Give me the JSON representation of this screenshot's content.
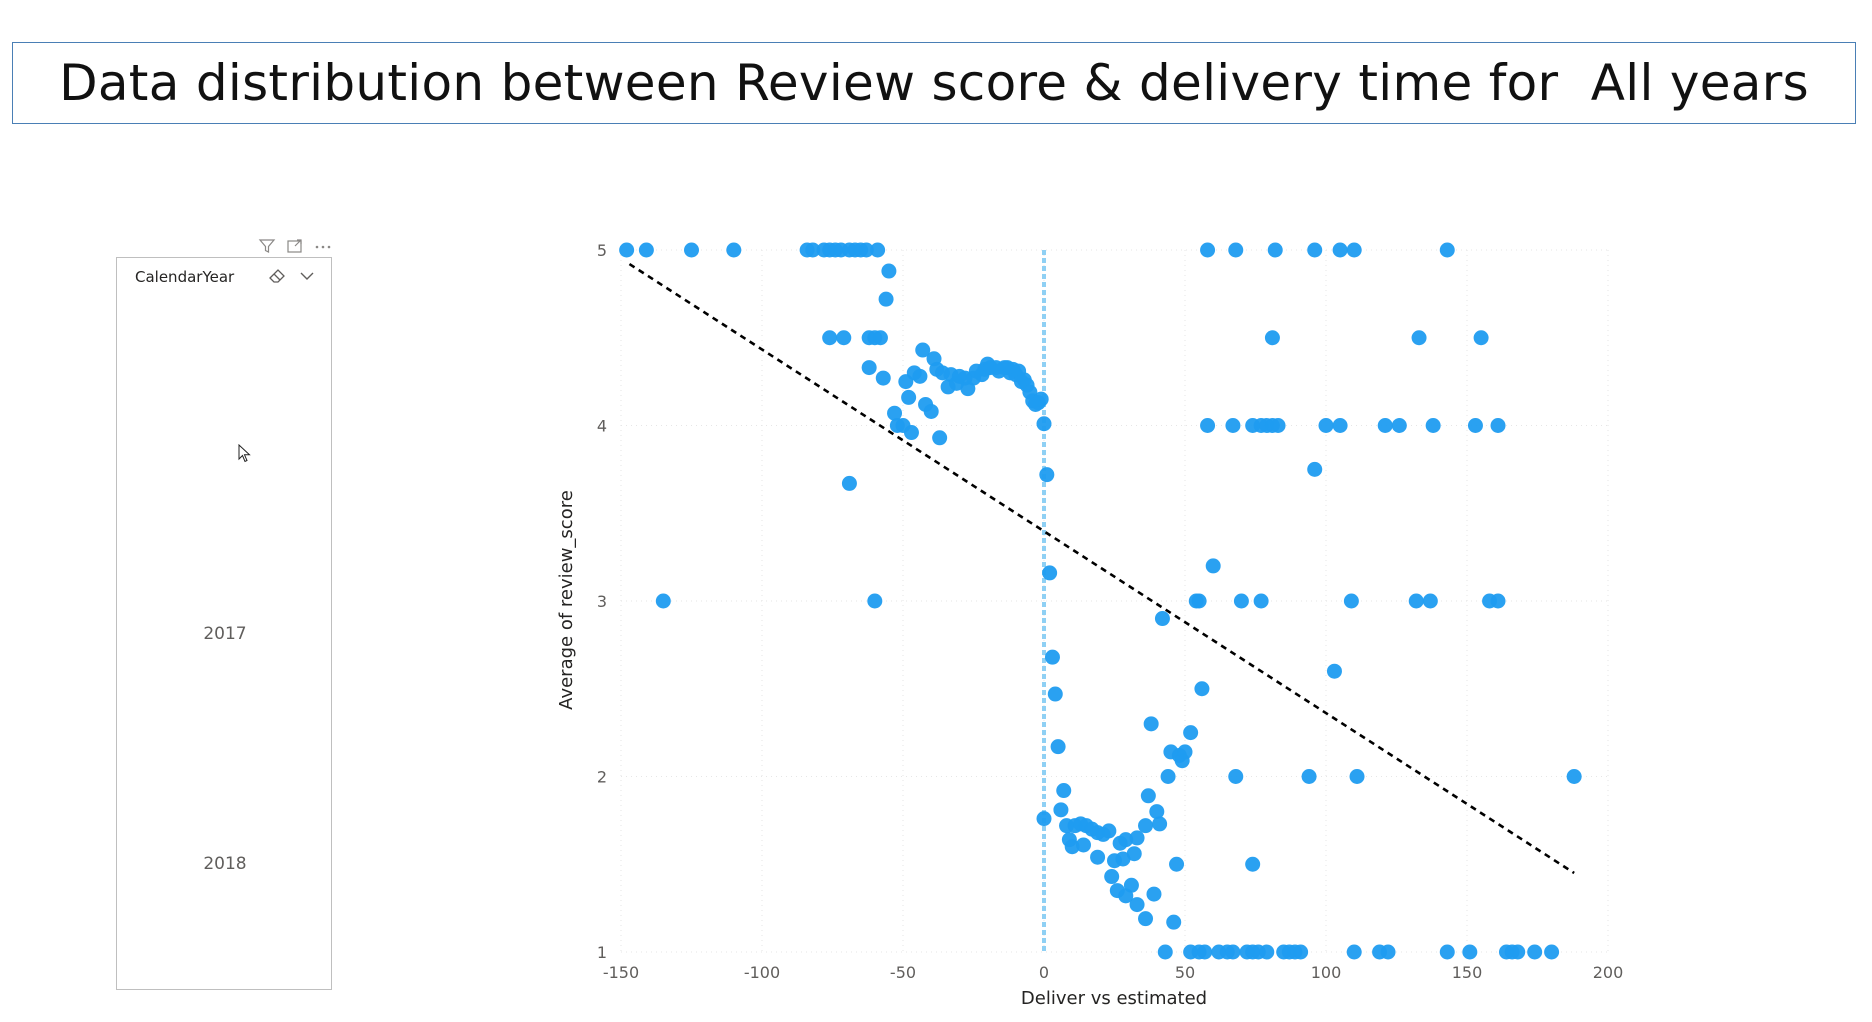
{
  "title": "Data distribution between Review score & delivery time for  All years",
  "slicer": {
    "header": "CalendarYear",
    "items": [
      "2017",
      "2018"
    ]
  },
  "icons": {
    "toolbar": [
      "filter-icon",
      "focus-mode-icon",
      "more-options-icon"
    ],
    "slicer": [
      "eraser-icon",
      "chevron-down-icon"
    ],
    "cursor": "mouse-pointer-icon"
  },
  "colors": {
    "point": "#1f9cf0",
    "reference_line": "#8fd0f4",
    "trend_line": "#000000",
    "title_border": "#4a7fb5"
  },
  "chart_data": {
    "type": "scatter",
    "xlabel": "Deliver vs estimated",
    "ylabel": "Average of review_score",
    "xlim": [
      -150,
      200
    ],
    "ylim": [
      1,
      5
    ],
    "xticks": [
      "-150",
      "-100",
      "-50",
      "0",
      "50",
      "100",
      "150",
      "200"
    ],
    "yticks": [
      "1",
      "2",
      "3",
      "4",
      "5"
    ],
    "grid": true,
    "reference_line_x": 0,
    "trend_line": {
      "x": [
        -147,
        188
      ],
      "y": [
        4.92,
        1.45
      ]
    },
    "points": [
      {
        "x": -148,
        "y": 5
      },
      {
        "x": -141,
        "y": 5
      },
      {
        "x": -125,
        "y": 5
      },
      {
        "x": -110,
        "y": 5
      },
      {
        "x": -84,
        "y": 5
      },
      {
        "x": -82,
        "y": 5
      },
      {
        "x": -78,
        "y": 5
      },
      {
        "x": -76,
        "y": 5
      },
      {
        "x": -74,
        "y": 5
      },
      {
        "x": -72,
        "y": 5
      },
      {
        "x": -69,
        "y": 5
      },
      {
        "x": -67,
        "y": 5
      },
      {
        "x": -65,
        "y": 5
      },
      {
        "x": -63,
        "y": 5
      },
      {
        "x": -59,
        "y": 5
      },
      {
        "x": 58,
        "y": 5
      },
      {
        "x": 68,
        "y": 5
      },
      {
        "x": 82,
        "y": 5
      },
      {
        "x": 96,
        "y": 5
      },
      {
        "x": 105,
        "y": 5
      },
      {
        "x": 110,
        "y": 5
      },
      {
        "x": 143,
        "y": 5
      },
      {
        "x": -55,
        "y": 4.88
      },
      {
        "x": -56,
        "y": 4.72
      },
      {
        "x": -76,
        "y": 4.5
      },
      {
        "x": -71,
        "y": 4.5
      },
      {
        "x": -62,
        "y": 4.5
      },
      {
        "x": -60,
        "y": 4.5
      },
      {
        "x": -58,
        "y": 4.5
      },
      {
        "x": 81,
        "y": 4.5
      },
      {
        "x": 133,
        "y": 4.5
      },
      {
        "x": 155,
        "y": 4.5
      },
      {
        "x": -62,
        "y": 4.33
      },
      {
        "x": -57,
        "y": 4.27
      },
      {
        "x": -53,
        "y": 4.07
      },
      {
        "x": -52,
        "y": 4.0
      },
      {
        "x": -50,
        "y": 4.0
      },
      {
        "x": -49,
        "y": 4.25
      },
      {
        "x": -48,
        "y": 4.16
      },
      {
        "x": -47,
        "y": 3.96
      },
      {
        "x": -46,
        "y": 4.3
      },
      {
        "x": -44,
        "y": 4.28
      },
      {
        "x": -43,
        "y": 4.43
      },
      {
        "x": -42,
        "y": 4.12
      },
      {
        "x": -40,
        "y": 4.08
      },
      {
        "x": -39,
        "y": 4.38
      },
      {
        "x": -38,
        "y": 4.32
      },
      {
        "x": -37,
        "y": 3.93
      },
      {
        "x": -36,
        "y": 4.3
      },
      {
        "x": -34,
        "y": 4.22
      },
      {
        "x": -33,
        "y": 4.29
      },
      {
        "x": -31,
        "y": 4.24
      },
      {
        "x": -30,
        "y": 4.28
      },
      {
        "x": -28,
        "y": 4.27
      },
      {
        "x": -27,
        "y": 4.21
      },
      {
        "x": -25,
        "y": 4.27
      },
      {
        "x": -24,
        "y": 4.31
      },
      {
        "x": -22,
        "y": 4.29
      },
      {
        "x": -21,
        "y": 4.32
      },
      {
        "x": -20,
        "y": 4.35
      },
      {
        "x": -19,
        "y": 4.33
      },
      {
        "x": -17,
        "y": 4.33
      },
      {
        "x": -16,
        "y": 4.31
      },
      {
        "x": -14,
        "y": 4.33
      },
      {
        "x": -13,
        "y": 4.33
      },
      {
        "x": -12,
        "y": 4.3
      },
      {
        "x": -11,
        "y": 4.32
      },
      {
        "x": -10,
        "y": 4.29
      },
      {
        "x": -9,
        "y": 4.31
      },
      {
        "x": -8,
        "y": 4.25
      },
      {
        "x": -7,
        "y": 4.26
      },
      {
        "x": -6,
        "y": 4.23
      },
      {
        "x": -5,
        "y": 4.19
      },
      {
        "x": -4,
        "y": 4.14
      },
      {
        "x": -3,
        "y": 4.12
      },
      {
        "x": -2,
        "y": 4.13
      },
      {
        "x": -1,
        "y": 4.15
      },
      {
        "x": 0,
        "y": 4.01
      },
      {
        "x": 58,
        "y": 4
      },
      {
        "x": 67,
        "y": 4
      },
      {
        "x": 74,
        "y": 4
      },
      {
        "x": 77,
        "y": 4
      },
      {
        "x": 79,
        "y": 4
      },
      {
        "x": 81,
        "y": 4
      },
      {
        "x": 83,
        "y": 4
      },
      {
        "x": 100,
        "y": 4
      },
      {
        "x": 105,
        "y": 4
      },
      {
        "x": 121,
        "y": 4
      },
      {
        "x": 126,
        "y": 4
      },
      {
        "x": 138,
        "y": 4
      },
      {
        "x": 153,
        "y": 4
      },
      {
        "x": 161,
        "y": 4
      },
      {
        "x": -69,
        "y": 3.67
      },
      {
        "x": 1,
        "y": 3.72
      },
      {
        "x": 96,
        "y": 3.75
      },
      {
        "x": 2,
        "y": 3.16
      },
      {
        "x": 60,
        "y": 3.2
      },
      {
        "x": -135,
        "y": 3
      },
      {
        "x": -60,
        "y": 3
      },
      {
        "x": 54,
        "y": 3
      },
      {
        "x": 55,
        "y": 3
      },
      {
        "x": 70,
        "y": 3
      },
      {
        "x": 77,
        "y": 3
      },
      {
        "x": 109,
        "y": 3
      },
      {
        "x": 132,
        "y": 3
      },
      {
        "x": 137,
        "y": 3
      },
      {
        "x": 158,
        "y": 3
      },
      {
        "x": 161,
        "y": 3
      },
      {
        "x": 42,
        "y": 2.9
      },
      {
        "x": 3,
        "y": 2.68
      },
      {
        "x": 103,
        "y": 2.6
      },
      {
        "x": 56,
        "y": 2.5
      },
      {
        "x": 4,
        "y": 2.47
      },
      {
        "x": 38,
        "y": 2.3
      },
      {
        "x": 52,
        "y": 2.25
      },
      {
        "x": 5,
        "y": 2.17
      },
      {
        "x": 45,
        "y": 2.14
      },
      {
        "x": 48,
        "y": 2.12
      },
      {
        "x": 49,
        "y": 2.09
      },
      {
        "x": 50,
        "y": 2.14
      },
      {
        "x": 44,
        "y": 2.0
      },
      {
        "x": 68,
        "y": 2
      },
      {
        "x": 94,
        "y": 2
      },
      {
        "x": 111,
        "y": 2
      },
      {
        "x": 188,
        "y": 2
      },
      {
        "x": 7,
        "y": 1.92
      },
      {
        "x": 37,
        "y": 1.89
      },
      {
        "x": 6,
        "y": 1.81
      },
      {
        "x": 40,
        "y": 1.8
      },
      {
        "x": 0,
        "y": 1.76
      },
      {
        "x": 41,
        "y": 1.73
      },
      {
        "x": 8,
        "y": 1.72
      },
      {
        "x": 11,
        "y": 1.72
      },
      {
        "x": 13,
        "y": 1.73
      },
      {
        "x": 15,
        "y": 1.72
      },
      {
        "x": 17,
        "y": 1.7
      },
      {
        "x": 19,
        "y": 1.68
      },
      {
        "x": 21,
        "y": 1.67
      },
      {
        "x": 23,
        "y": 1.69
      },
      {
        "x": 36,
        "y": 1.72
      },
      {
        "x": 9,
        "y": 1.64
      },
      {
        "x": 10,
        "y": 1.6
      },
      {
        "x": 14,
        "y": 1.61
      },
      {
        "x": 27,
        "y": 1.62
      },
      {
        "x": 29,
        "y": 1.64
      },
      {
        "x": 33,
        "y": 1.65
      },
      {
        "x": 19,
        "y": 1.54
      },
      {
        "x": 25,
        "y": 1.52
      },
      {
        "x": 28,
        "y": 1.53
      },
      {
        "x": 32,
        "y": 1.56
      },
      {
        "x": 47,
        "y": 1.5
      },
      {
        "x": 74,
        "y": 1.5
      },
      {
        "x": 24,
        "y": 1.43
      },
      {
        "x": 31,
        "y": 1.38
      },
      {
        "x": 26,
        "y": 1.35
      },
      {
        "x": 29,
        "y": 1.32
      },
      {
        "x": 39,
        "y": 1.33
      },
      {
        "x": 33,
        "y": 1.27
      },
      {
        "x": 36,
        "y": 1.19
      },
      {
        "x": 46,
        "y": 1.17
      },
      {
        "x": 43,
        "y": 1
      },
      {
        "x": 52,
        "y": 1
      },
      {
        "x": 55,
        "y": 1
      },
      {
        "x": 57,
        "y": 1
      },
      {
        "x": 62,
        "y": 1
      },
      {
        "x": 65,
        "y": 1
      },
      {
        "x": 67,
        "y": 1
      },
      {
        "x": 72,
        "y": 1
      },
      {
        "x": 74,
        "y": 1
      },
      {
        "x": 76,
        "y": 1
      },
      {
        "x": 79,
        "y": 1
      },
      {
        "x": 85,
        "y": 1
      },
      {
        "x": 87,
        "y": 1
      },
      {
        "x": 89,
        "y": 1
      },
      {
        "x": 91,
        "y": 1
      },
      {
        "x": 110,
        "y": 1
      },
      {
        "x": 119,
        "y": 1
      },
      {
        "x": 122,
        "y": 1
      },
      {
        "x": 143,
        "y": 1
      },
      {
        "x": 151,
        "y": 1
      },
      {
        "x": 164,
        "y": 1
      },
      {
        "x": 166,
        "y": 1
      },
      {
        "x": 168,
        "y": 1
      },
      {
        "x": 174,
        "y": 1
      },
      {
        "x": 180,
        "y": 1
      }
    ]
  }
}
